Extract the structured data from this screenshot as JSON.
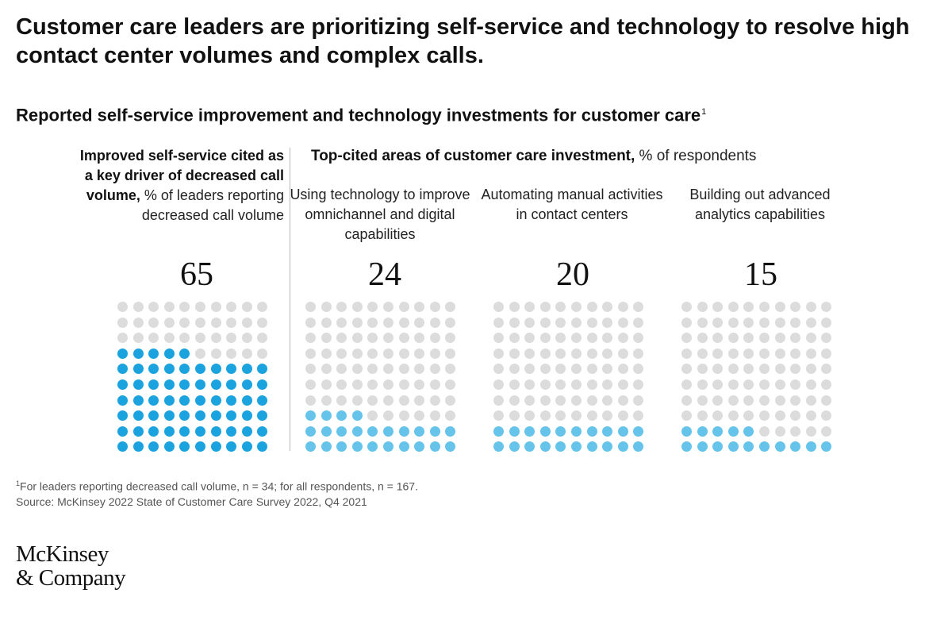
{
  "title": "Customer care leaders are prioritizing self-service and technology to resolve high contact center volumes and complex calls.",
  "subtitle": "Reported self-service improvement and technology investments for customer care",
  "subtitle_footnote_marker": "1",
  "left_column": {
    "header_bold": "Improved self-service cited as a key driver of decreased call volume,",
    "header_regular": " % of leaders reporting decreased call volume"
  },
  "right_header": {
    "bold": "Top-cited areas of customer care investment,",
    "regular": " % of respondents"
  },
  "chart_data": {
    "type": "dot-matrix",
    "total_dots_per_panel": 100,
    "grid": {
      "rows": 10,
      "cols": 10
    },
    "panels": [
      {
        "label": "",
        "value": 65,
        "color": "#1ba3df"
      },
      {
        "label": "Using technology to improve omnichannel and digital capabilities",
        "value": 24,
        "color": "#66c4ea"
      },
      {
        "label": "Automating manual activities in contact centers",
        "value": 20,
        "color": "#66c4ea"
      },
      {
        "label": "Building out advanced analytics capabilities",
        "value": 15,
        "color": "#66c4ea"
      }
    ],
    "empty_color": "#dcdcdc"
  },
  "footnote": {
    "marker": "1",
    "line1": "For leaders reporting decreased call volume, n = 34; for all respondents, n = 167.",
    "line2": "Source: McKinsey 2022 State of Customer Care Survey 2022, Q4 2021"
  },
  "logo": {
    "line1": "McKinsey",
    "line2": "& Company"
  }
}
